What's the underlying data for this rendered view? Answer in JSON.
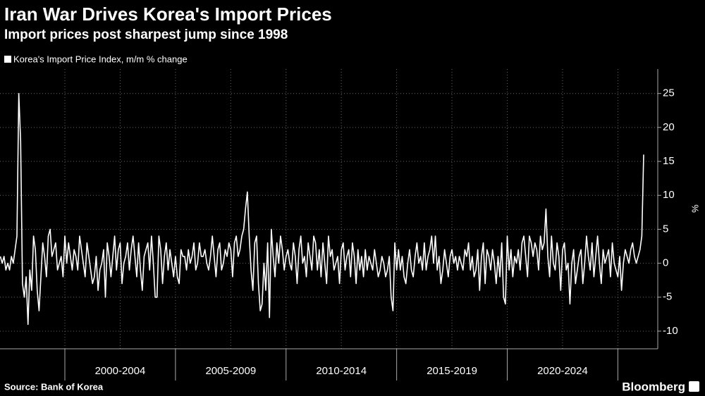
{
  "chart_data": {
    "type": "line",
    "title": "Iran War Drives Korea's Import Prices",
    "subtitle": "Import prices post sharpest jump since 1998",
    "y_unit": "%",
    "source": "Source: Bank of Korea",
    "brand": "Bloomberg",
    "categories": [
      null,
      null,
      null,
      null,
      null,
      null,
      null,
      null,
      null,
      null,
      null,
      null,
      null,
      null,
      null,
      null,
      null,
      null,
      null,
      null,
      null,
      null,
      null,
      null,
      null,
      null,
      null,
      null,
      null,
      null,
      null,
      null,
      null,
      null,
      null,
      null,
      null,
      null,
      null,
      null,
      null,
      null,
      null,
      null,
      null,
      null,
      null,
      null,
      null,
      null,
      null,
      null,
      null,
      null,
      null,
      null,
      null,
      null,
      null,
      null,
      null,
      null,
      null,
      null,
      null,
      "2000-2004",
      null,
      null,
      null,
      null,
      null,
      null,
      null,
      null,
      null,
      null,
      null,
      null,
      null,
      null,
      null,
      null,
      null,
      null,
      null,
      null,
      null,
      null,
      null,
      null,
      null,
      null,
      null,
      null,
      null,
      null,
      null,
      null,
      null,
      null,
      null,
      null,
      null,
      null,
      null,
      null,
      null,
      null,
      null,
      null,
      null,
      null,
      null,
      null,
      null,
      null,
      null,
      null,
      null,
      null,
      null,
      null,
      null,
      null,
      null,
      "2005-2009",
      null,
      null,
      null,
      null,
      null,
      null,
      null,
      null,
      null,
      null,
      null,
      null,
      null,
      null,
      null,
      null,
      null,
      null,
      null,
      null,
      null,
      null,
      null,
      null,
      null,
      null,
      null,
      null,
      null,
      null,
      null,
      null,
      null,
      null,
      null,
      null,
      null,
      null,
      null,
      null,
      null,
      null,
      null,
      null,
      null,
      null,
      null,
      null,
      null,
      null,
      null,
      null,
      null,
      null,
      null,
      null,
      null,
      null,
      null,
      "2010-2014",
      null,
      null,
      null,
      null,
      null,
      null,
      null,
      null,
      null,
      null,
      null,
      null,
      null,
      null,
      null,
      null,
      null,
      null,
      null,
      null,
      null,
      null,
      null,
      null,
      null,
      null,
      null,
      null,
      null,
      null,
      null,
      null,
      null,
      null,
      null,
      null,
      null,
      null,
      null,
      null,
      null,
      null,
      null,
      null,
      null,
      null,
      null,
      null,
      null,
      null,
      null,
      null,
      null,
      null,
      null,
      null,
      null,
      null,
      null,
      "2015-2019",
      null,
      null,
      null,
      null,
      null,
      null,
      null,
      null,
      null,
      null,
      null,
      null,
      null,
      null,
      null,
      null,
      null,
      null,
      null,
      null,
      null,
      null,
      null,
      null,
      null,
      null,
      null,
      null,
      null,
      null,
      null,
      null,
      null,
      null,
      null,
      null,
      null,
      null,
      null,
      null,
      null,
      null,
      null,
      null,
      null,
      null,
      null,
      null,
      null,
      null,
      null,
      null,
      null,
      null,
      null,
      null,
      null,
      null,
      null,
      "2020-2024",
      null,
      null,
      null,
      null,
      null,
      null,
      null,
      null,
      null,
      null,
      null,
      null,
      null,
      null,
      null,
      null,
      null,
      null,
      null,
      null,
      null,
      null,
      null,
      null,
      null,
      null,
      null,
      null,
      null,
      null,
      null,
      null,
      null,
      null,
      null,
      null,
      null,
      null,
      null,
      null,
      null,
      null,
      null,
      null
    ],
    "series": [
      {
        "name": "Korea's Import Price Index, m/m % change",
        "color": "#ffffff",
        "values": [
          1,
          0,
          1,
          -1,
          0,
          -1,
          1,
          0,
          2,
          4,
          25,
          18,
          -3,
          -5,
          -2,
          -9,
          -1,
          -4,
          4,
          2,
          -4,
          -7,
          -2,
          3,
          1,
          -2,
          4,
          5,
          1,
          2,
          3,
          -1,
          0,
          1,
          -2,
          4,
          0,
          3,
          1,
          -1,
          2,
          1,
          -1,
          4,
          2,
          0,
          -2,
          3,
          1,
          -1,
          -3,
          -2,
          1,
          -4,
          -1,
          0,
          2,
          -5,
          3,
          1,
          -2,
          1,
          4,
          -1,
          2,
          3,
          -3,
          0,
          1,
          3,
          -1,
          2,
          4,
          1,
          -2,
          3,
          -1,
          -4,
          1,
          2,
          3,
          -1,
          4,
          0,
          -5,
          -5,
          4,
          2,
          -3,
          1,
          3,
          -1,
          2,
          0,
          -2,
          1,
          -2,
          -3,
          2,
          1,
          1,
          -1,
          2,
          0,
          1,
          3,
          -1,
          0,
          3,
          1,
          1,
          2,
          0,
          -1,
          1,
          4,
          1,
          -2,
          2,
          3,
          -1,
          0,
          2,
          1,
          3,
          2,
          -2,
          3,
          4,
          1,
          2,
          4,
          5,
          8,
          10.5,
          4,
          -1,
          -4,
          3,
          4,
          -3,
          -7,
          -6,
          0,
          -4,
          3,
          -8,
          5,
          1,
          -2,
          3,
          0,
          4,
          2,
          -1,
          1,
          2,
          0,
          -1,
          3,
          1,
          -3,
          2,
          4,
          0,
          1,
          -2,
          3,
          1,
          -1,
          4,
          3,
          -1,
          2,
          -2,
          3,
          0,
          -3,
          4,
          1,
          2,
          -1,
          0,
          1,
          -3,
          2,
          3,
          -1,
          1,
          2,
          -2,
          3,
          1,
          -3,
          2,
          -1,
          1,
          -2,
          2,
          -1,
          1,
          0,
          -1,
          2,
          0,
          -2,
          -1,
          1,
          0,
          -2,
          -1,
          1,
          -5,
          -7,
          3,
          -1,
          2,
          -1,
          1,
          -2,
          -3,
          0,
          2,
          -1,
          -2,
          1,
          3,
          0,
          1,
          -1,
          3,
          -1,
          1,
          2,
          4,
          0,
          4,
          -1,
          1,
          -3,
          -1,
          2,
          0,
          -2,
          1,
          2,
          0,
          1,
          -1,
          1,
          0,
          -1,
          2,
          1,
          3,
          -1,
          1,
          -2,
          -1,
          2,
          -4,
          1,
          3,
          -3,
          2,
          1,
          -1,
          2,
          0,
          -3,
          1,
          -2,
          3,
          -5,
          -6,
          4,
          -1,
          2,
          -2,
          1,
          0,
          2,
          -1,
          3,
          4,
          1,
          -2,
          4,
          3,
          1,
          3,
          2,
          -1,
          4,
          2,
          3,
          8,
          1,
          -2,
          4,
          0,
          -1,
          3,
          1,
          -4,
          2,
          3,
          -1,
          0,
          -6,
          0,
          2,
          -3,
          -1,
          1,
          2,
          -3,
          0,
          4,
          1,
          -1,
          3,
          -2,
          1,
          4,
          0,
          -3,
          2,
          0,
          1,
          2,
          -2,
          3,
          0,
          -1,
          -2,
          1,
          -4,
          0,
          2,
          1,
          0,
          2,
          3,
          1,
          0,
          1,
          2,
          4,
          16
        ]
      }
    ],
    "ylim": [
      -12.6,
      28.6
    ],
    "yticks": [
      -10,
      -5,
      0,
      5,
      10,
      15,
      20,
      25
    ],
    "grid": true
  }
}
